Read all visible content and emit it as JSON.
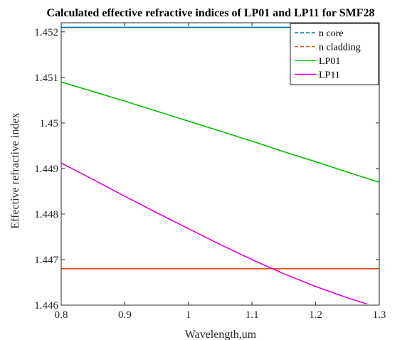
{
  "chart_data": {
    "type": "line",
    "title": "Calculated effective refractive indices of LP01 and LP11 for SMF28",
    "xlabel": "Wavelength,um",
    "ylabel": "Effective refractive index",
    "xlim": [
      0.8,
      1.3
    ],
    "ylim": [
      1.446,
      1.4522
    ],
    "x_ticks": [
      0.8,
      0.9,
      1.0,
      1.1,
      1.2,
      1.3
    ],
    "x_tick_labels": [
      "0.8",
      "0.9",
      "1",
      "1.1",
      "1.2",
      "1.3"
    ],
    "y_ticks": [
      1.446,
      1.447,
      1.448,
      1.449,
      1.45,
      1.451,
      1.452
    ],
    "y_tick_labels": [
      "1.446",
      "1.447",
      "1.448",
      "1.449",
      "1.45",
      "1.451",
      "1.452"
    ],
    "grid": false,
    "legend_position": "top-right",
    "series": [
      {
        "name": "n core",
        "color": "#0072BD",
        "style": "dashed-legend",
        "x": [
          0.8,
          1.3
        ],
        "y": [
          1.4521,
          1.4521
        ]
      },
      {
        "name": "n cladding",
        "color": "#D95319",
        "style": "dashed-legend",
        "x": [
          0.8,
          1.3
        ],
        "y": [
          1.4468,
          1.4468
        ]
      },
      {
        "name": "LP01",
        "color": "#00C000",
        "style": "solid",
        "x": [
          0.8,
          0.85,
          0.9,
          0.95,
          1.0,
          1.05,
          1.1,
          1.15,
          1.2,
          1.25,
          1.3
        ],
        "y": [
          1.4509,
          1.45069,
          1.45048,
          1.45026,
          1.45004,
          1.44982,
          1.4496,
          1.44937,
          1.44915,
          1.44892,
          1.4487
        ]
      },
      {
        "name": "LP11",
        "color": "#E000E0",
        "style": "solid",
        "x": [
          0.8,
          0.85,
          0.9,
          0.95,
          1.0,
          1.05,
          1.1,
          1.15,
          1.2,
          1.25,
          1.28
        ],
        "y": [
          1.44912,
          1.44876,
          1.44839,
          1.44803,
          1.44768,
          1.44733,
          1.447,
          1.44669,
          1.44641,
          1.44616,
          1.44603
        ]
      }
    ]
  }
}
